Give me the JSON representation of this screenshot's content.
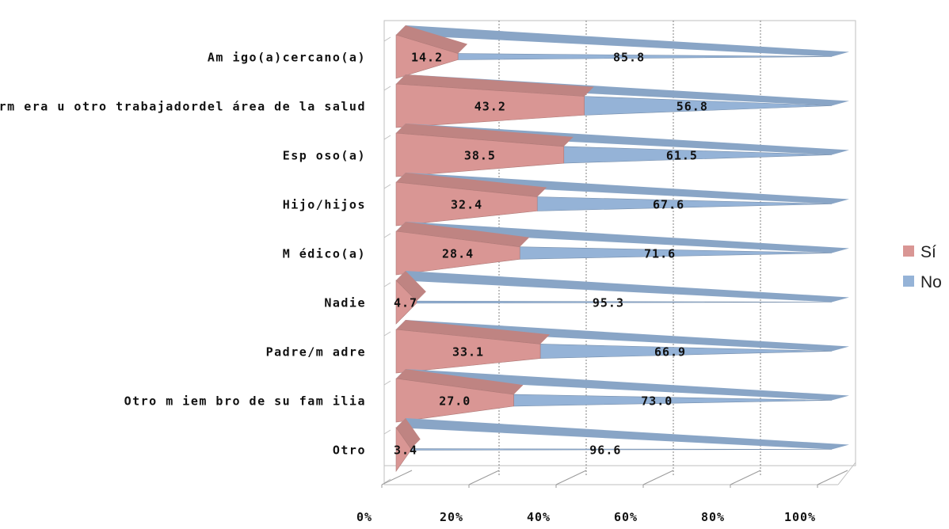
{
  "chart_data": {
    "type": "bar",
    "orientation": "horizontal",
    "stacked": "percent",
    "style": "3d-cone",
    "categories": [
      "Am igo(a)cercano(a)",
      "Enferm era u otro trabajadordel área de la salud",
      "Esp oso(a)",
      "Hijo/hijos",
      "M édico(a)",
      "Nadie",
      "Padre/m adre",
      "Otro m iem bro de su fam ilia",
      "Otro"
    ],
    "series": [
      {
        "name": "Sí",
        "color": "#d99694",
        "values": [
          14.2,
          43.2,
          38.5,
          32.4,
          28.4,
          4.7,
          33.1,
          27.0,
          3.4
        ]
      },
      {
        "name": "No",
        "color": "#95b3d7",
        "values": [
          85.8,
          56.8,
          61.5,
          67.6,
          71.6,
          95.3,
          66.9,
          73.0,
          96.6
        ]
      }
    ],
    "data_labels": {
      "Sí": [
        "14.2",
        "43.2",
        "38.5",
        "32.4",
        "28.4",
        "4.7",
        "33.1",
        "27.0",
        "3.4"
      ],
      "No": [
        "85.8",
        "56.8",
        "61.5",
        "67.6",
        "71.6",
        "95.3",
        "66.9",
        "73.0",
        "96.6"
      ]
    },
    "x_ticks": [
      "0%",
      "20%",
      "40%",
      "60%",
      "80%",
      "100%"
    ],
    "xlim": [
      0,
      100
    ],
    "grid": true,
    "legend_position": "right",
    "title": "",
    "xlabel": "",
    "ylabel": ""
  }
}
